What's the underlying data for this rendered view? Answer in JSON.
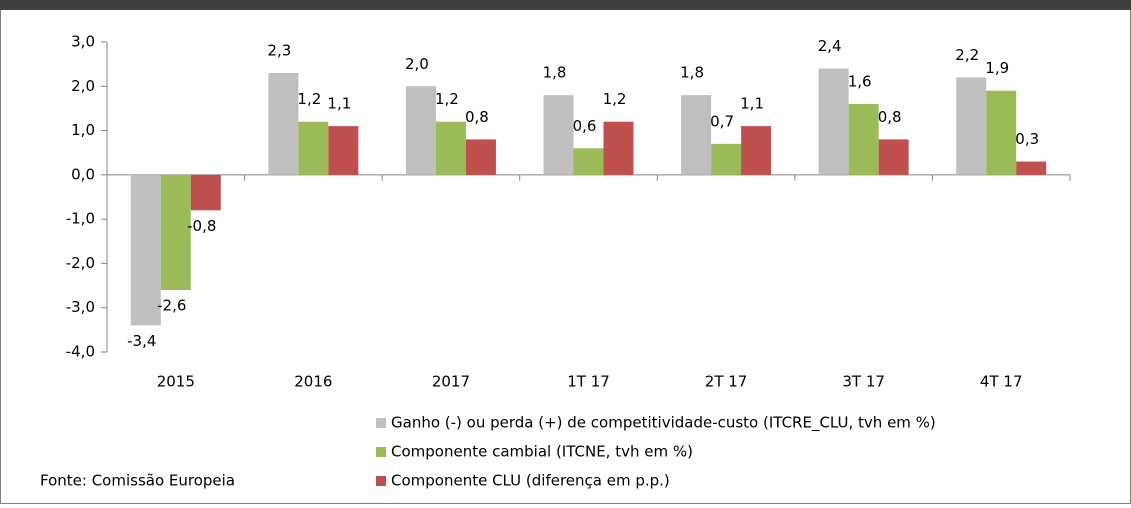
{
  "chart_data": {
    "type": "bar",
    "categories": [
      "2015",
      "2016",
      "2017",
      "1T 17",
      "2T 17",
      "3T 17",
      "4T 17"
    ],
    "series": [
      {
        "name": "Ganho (-) ou perda (+) de competitividade-custo (ITCRE_CLU, tvh em %)",
        "color": "#bfbfbf",
        "values": [
          -3.4,
          2.3,
          2.0,
          1.8,
          1.8,
          2.4,
          2.2
        ],
        "value_labels": [
          "-3,4",
          "2,3",
          "2,0",
          "1,8",
          "1,8",
          "2,4",
          "2,2"
        ]
      },
      {
        "name": "Componente cambial (ITCNE, tvh em %)",
        "color": "#9bbb59",
        "values": [
          -2.6,
          1.2,
          1.2,
          0.6,
          0.7,
          1.6,
          1.9
        ],
        "value_labels": [
          "-2,6",
          "1,2",
          "1,2",
          "0,6",
          "0,7",
          "1,6",
          "1,9"
        ]
      },
      {
        "name": "Componente CLU (diferença em p.p.)",
        "color": "#c0504d",
        "values": [
          -0.8,
          1.1,
          0.8,
          1.2,
          1.1,
          0.8,
          0.3
        ],
        "value_labels": [
          "-0,8",
          "1,1",
          "0,8",
          "1,2",
          "1,1",
          "0,8",
          "0,3"
        ]
      }
    ],
    "ylim": [
      -4,
      3
    ],
    "yticks": [
      {
        "value": -4,
        "label": "-4,0"
      },
      {
        "value": -3,
        "label": "-3,0"
      },
      {
        "value": -2,
        "label": "-2,0"
      },
      {
        "value": -1,
        "label": "-1,0"
      },
      {
        "value": 0,
        "label": "0,0"
      },
      {
        "value": 1,
        "label": "1,0"
      },
      {
        "value": 2,
        "label": "2,0"
      },
      {
        "value": 3,
        "label": "3,0"
      }
    ],
    "source": "Fonte: Comissão Europeia"
  }
}
